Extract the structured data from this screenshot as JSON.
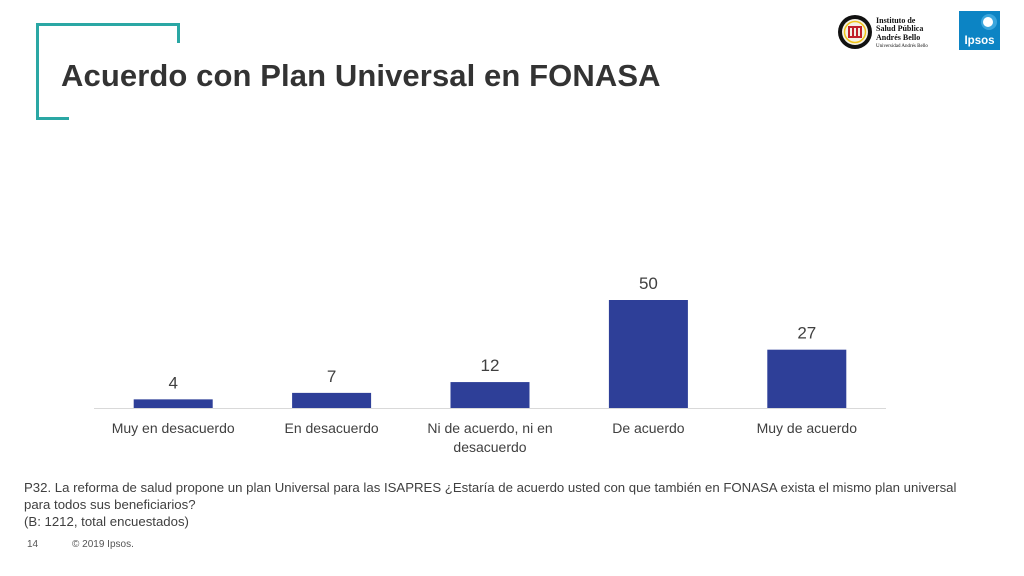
{
  "title": "Acuerdo con Plan Universal en FONASA",
  "logos": {
    "isp_lines": [
      "Instituto de",
      "Salud Pública",
      "Andrés Bello"
    ],
    "isp_university": "Universidad Andrés Bello",
    "ipsos_label": "Ipsos"
  },
  "colors": {
    "accent": "#2aa7a4",
    "bar": "#2e3f98",
    "ipsos_blue": "#0c84c4"
  },
  "chart_data": {
    "type": "bar",
    "categories": [
      [
        "Muy en desacuerdo"
      ],
      [
        "En desacuerdo"
      ],
      [
        "Ni de acuerdo, ni en",
        "desacuerdo"
      ],
      [
        "De acuerdo"
      ],
      [
        "Muy de acuerdo"
      ]
    ],
    "values": [
      4,
      7,
      12,
      50,
      27
    ],
    "ylim": [
      0,
      50
    ],
    "grid": false,
    "legend": "none",
    "data_labels": true
  },
  "footnote": {
    "question_line1": "P32. La reforma de salud propone un plan Universal para las ISAPRES ¿Estaría de acuerdo usted con que también en FONASA exista el mismo plan universal",
    "question_line2": "para todos sus beneficiarios?",
    "base": "(B: 1212, total encuestados)"
  },
  "page_number": "14",
  "copyright": "© 2019 Ipsos."
}
